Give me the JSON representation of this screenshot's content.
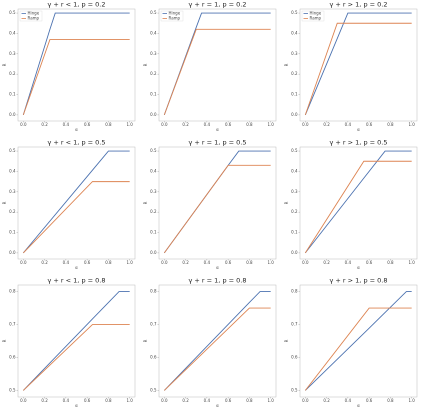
{
  "chart_data": [
    {
      "type": "line",
      "title": "γ + r < 1,  p = 0.2",
      "x_label": "α",
      "y_label": "R",
      "legend": "upper left",
      "x": [
        0,
        0.25,
        0.3,
        1.0
      ],
      "series": [
        {
          "name": "Hinge",
          "color": "#4c72b0",
          "values": [
            0,
            0.42,
            0.5,
            0.5
          ]
        },
        {
          "name": "Ramp",
          "color": "#dd8452",
          "values": [
            0,
            0.37,
            0.37,
            0.37
          ]
        }
      ],
      "xlim": [
        -0.05,
        1.05
      ],
      "ylim": [
        -0.03,
        0.52
      ],
      "xticks": [
        {
          "value": 0,
          "label": "0.0"
        },
        0.2,
        0.4,
        0.6,
        0.8,
        {
          "value": 1,
          "label": "1.0"
        }
      ],
      "yticks": [
        {
          "value": 0,
          "label": "0.0"
        },
        0.1,
        0.2,
        0.3,
        0.4,
        0.5
      ]
    },
    {
      "type": "line",
      "title": "γ + r = 1,  p = 0.2",
      "x_label": "α",
      "y_label": "R",
      "legend": "upper left",
      "x": [
        0,
        0.3,
        0.35,
        1.0
      ],
      "series": [
        {
          "name": "Hinge",
          "color": "#4c72b0",
          "values": [
            0,
            0.43,
            0.5,
            0.5
          ]
        },
        {
          "name": "Ramp",
          "color": "#dd8452",
          "values": [
            0,
            0.42,
            0.42,
            0.42
          ]
        }
      ],
      "xlim": [
        -0.05,
        1.05
      ],
      "ylim": [
        -0.03,
        0.52
      ],
      "xticks": [
        {
          "value": 0,
          "label": "0.0"
        },
        0.2,
        0.4,
        0.6,
        0.8,
        {
          "value": 1,
          "label": "1.0"
        }
      ],
      "yticks": [
        {
          "value": 0,
          "label": "0.0"
        },
        0.1,
        0.2,
        0.3,
        0.4,
        0.5
      ]
    },
    {
      "type": "line",
      "title": "γ + r > 1,  p = 0.2",
      "x_label": "α",
      "y_label": "R",
      "legend": "upper left",
      "x": [
        0,
        0.3,
        0.4,
        1.0
      ],
      "series": [
        {
          "name": "Hinge",
          "color": "#4c72b0",
          "values": [
            0,
            0.375,
            0.5,
            0.5
          ]
        },
        {
          "name": "Ramp",
          "color": "#dd8452",
          "values": [
            0,
            0.45,
            0.45,
            0.45
          ]
        }
      ],
      "xlim": [
        -0.05,
        1.05
      ],
      "ylim": [
        -0.03,
        0.52
      ],
      "xticks": [
        {
          "value": 0,
          "label": "0.0"
        },
        0.2,
        0.4,
        0.6,
        0.8,
        {
          "value": 1,
          "label": "1.0"
        }
      ],
      "yticks": [
        {
          "value": 0,
          "label": "0.0"
        },
        0.1,
        0.2,
        0.3,
        0.4,
        0.5
      ]
    },
    {
      "type": "line",
      "title": "γ + r < 1,  p = 0.5",
      "x_label": "α",
      "y_label": "R",
      "x": [
        0,
        0.65,
        0.8,
        1.0
      ],
      "series": [
        {
          "name": "Hinge",
          "color": "#4c72b0",
          "values": [
            0,
            0.406,
            0.5,
            0.5
          ]
        },
        {
          "name": "Ramp",
          "color": "#dd8452",
          "values": [
            0,
            0.35,
            0.35,
            0.35
          ]
        }
      ],
      "xlim": [
        -0.05,
        1.05
      ],
      "ylim": [
        -0.03,
        0.52
      ],
      "xticks": [
        {
          "value": 0,
          "label": "0.0"
        },
        0.2,
        0.4,
        0.6,
        0.8,
        {
          "value": 1,
          "label": "1.0"
        }
      ],
      "yticks": [
        {
          "value": 0,
          "label": "0.0"
        },
        0.1,
        0.2,
        0.3,
        0.4,
        0.5
      ]
    },
    {
      "type": "line",
      "title": "γ + r = 1,  p = 0.5",
      "x_label": "α",
      "y_label": "R",
      "x": [
        0,
        0.6,
        0.7,
        1.0
      ],
      "series": [
        {
          "name": "Hinge",
          "color": "#4c72b0",
          "values": [
            0,
            0.43,
            0.5,
            0.5
          ]
        },
        {
          "name": "Ramp",
          "color": "#dd8452",
          "values": [
            0,
            0.43,
            0.43,
            0.43
          ]
        }
      ],
      "xlim": [
        -0.05,
        1.05
      ],
      "ylim": [
        -0.03,
        0.52
      ],
      "xticks": [
        {
          "value": 0,
          "label": "0.0"
        },
        0.2,
        0.4,
        0.6,
        0.8,
        {
          "value": 1,
          "label": "1.0"
        }
      ],
      "yticks": [
        {
          "value": 0,
          "label": "0.0"
        },
        0.1,
        0.2,
        0.3,
        0.4,
        0.5
      ]
    },
    {
      "type": "line",
      "title": "γ + r > 1,  p = 0.5",
      "x_label": "α",
      "y_label": "R",
      "x": [
        0,
        0.55,
        0.75,
        1.0
      ],
      "series": [
        {
          "name": "Hinge",
          "color": "#4c72b0",
          "values": [
            0,
            0.367,
            0.5,
            0.5
          ]
        },
        {
          "name": "Ramp",
          "color": "#dd8452",
          "values": [
            0,
            0.45,
            0.45,
            0.45
          ]
        }
      ],
      "xlim": [
        -0.05,
        1.05
      ],
      "ylim": [
        -0.03,
        0.52
      ],
      "xticks": [
        {
          "value": 0,
          "label": "0.0"
        },
        0.2,
        0.4,
        0.6,
        0.8,
        {
          "value": 1,
          "label": "1.0"
        }
      ],
      "yticks": [
        {
          "value": 0,
          "label": "0.0"
        },
        0.1,
        0.2,
        0.3,
        0.4,
        0.5
      ]
    },
    {
      "type": "line",
      "title": "γ + r < 1,  p = 0.8",
      "x_label": "α",
      "y_label": "R",
      "x": [
        0,
        0.65,
        0.9,
        1.0
      ],
      "series": [
        {
          "name": "Hinge",
          "color": "#4c72b0",
          "values": [
            0.5,
            0.717,
            0.8,
            0.8
          ]
        },
        {
          "name": "Ramp",
          "color": "#dd8452",
          "values": [
            0.5,
            0.7,
            0.7,
            0.7
          ]
        }
      ],
      "xlim": [
        -0.05,
        1.05
      ],
      "ylim": [
        0.48,
        0.82
      ],
      "xticks": [
        {
          "value": 0,
          "label": "0.0"
        },
        0.2,
        0.4,
        0.6,
        0.8,
        {
          "value": 1,
          "label": "1.0"
        }
      ],
      "yticks": [
        0.5,
        0.6,
        0.7,
        0.8
      ]
    },
    {
      "type": "line",
      "title": "γ + r = 1,  p = 0.8",
      "x_label": "α",
      "y_label": "R",
      "x": [
        0,
        0.8,
        0.9,
        1.0
      ],
      "series": [
        {
          "name": "Hinge",
          "color": "#4c72b0",
          "values": [
            0.5,
            0.767,
            0.8,
            0.8
          ]
        },
        {
          "name": "Ramp",
          "color": "#dd8452",
          "values": [
            0.5,
            0.75,
            0.75,
            0.75
          ]
        }
      ],
      "xlim": [
        -0.05,
        1.05
      ],
      "ylim": [
        0.48,
        0.82
      ],
      "xticks": [
        {
          "value": 0,
          "label": "0.0"
        },
        0.2,
        0.4,
        0.6,
        0.8,
        {
          "value": 1,
          "label": "1.0"
        }
      ],
      "yticks": [
        0.5,
        0.6,
        0.7,
        0.8
      ]
    },
    {
      "type": "line",
      "title": "γ + r > 1,  p = 0.8",
      "x_label": "α",
      "y_label": "R",
      "x": [
        0,
        0.6,
        0.95,
        1.0
      ],
      "series": [
        {
          "name": "Hinge",
          "color": "#4c72b0",
          "values": [
            0.5,
            0.689,
            0.8,
            0.8
          ]
        },
        {
          "name": "Ramp",
          "color": "#dd8452",
          "values": [
            0.5,
            0.75,
            0.75,
            0.75
          ]
        }
      ],
      "xlim": [
        -0.05,
        1.05
      ],
      "ylim": [
        0.48,
        0.82
      ],
      "xticks": [
        {
          "value": 0,
          "label": "0.0"
        },
        0.2,
        0.4,
        0.6,
        0.8,
        {
          "value": 1,
          "label": "1.0"
        }
      ],
      "yticks": [
        0.5,
        0.6,
        0.7,
        0.8
      ]
    }
  ]
}
